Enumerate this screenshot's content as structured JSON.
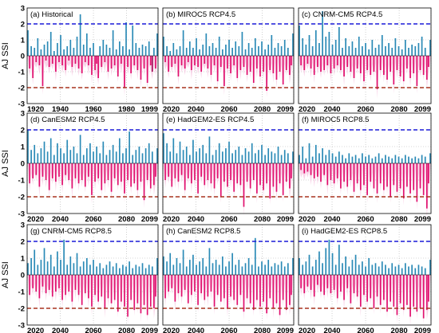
{
  "figure": {
    "colors": {
      "positive": "#2a8ab6",
      "negative": "#e0106e",
      "negative_dark": "#a0105a",
      "envelope": "#f7c6e0",
      "upper_line": "#1a1ad8",
      "lower_line": "#a8321e",
      "grid": "#b0b0b0",
      "frame": "#000000"
    },
    "ylabel": "AJ SSI",
    "ylim": [
      -3,
      3
    ],
    "yticks": [
      "-3",
      "-2",
      "-1",
      "0",
      "1",
      "2",
      "3"
    ],
    "reference_lines": [
      2,
      -2
    ]
  },
  "chart_data": [
    {
      "type": "bar",
      "title": "(a) Historical",
      "x_start": 1920,
      "x_end": 1999,
      "xticks": [
        "1920",
        "1940",
        "1960",
        "1980",
        "1999"
      ],
      "ylim": [
        -3,
        3
      ],
      "values": [
        1.6,
        -0.8,
        0.6,
        -1.4,
        0.5,
        -0.4,
        1.1,
        -0.6,
        0.4,
        -1.9,
        0.7,
        -0.3,
        0.9,
        -0.7,
        1.5,
        -0.5,
        0.3,
        -1.0,
        0.8,
        -0.4,
        1.3,
        -0.6,
        0.4,
        -0.9,
        0.6,
        -0.3,
        1.0,
        -0.7,
        0.5,
        -0.5,
        1.2,
        -0.8,
        2.6,
        -1.1,
        0.7,
        -0.4,
        1.4,
        -0.6,
        0.5,
        -1.2,
        0.8,
        -0.9,
        -0.5,
        -1.4,
        0.6,
        -0.7,
        1.0,
        -0.4,
        0.7,
        -1.0,
        0.5,
        -0.8,
        1.6,
        -0.6,
        0.4,
        -1.3,
        0.9,
        -0.5,
        0.6,
        -2.0,
        2.1,
        -0.7,
        0.4,
        -1.1,
        1.9,
        -0.6,
        0.8,
        -0.9,
        0.5,
        -1.5,
        0.7,
        -0.8,
        0.6,
        -1.7,
        0.9,
        -0.6,
        -1.0,
        0.5,
        -0.8,
        1.4
      ]
    },
    {
      "type": "bar",
      "title": "(b) MIROC5 RCP4.5",
      "x_start": 2020,
      "x_end": 2099,
      "xticks": [
        "2020",
        "2040",
        "2060",
        "2080",
        "2099"
      ],
      "ylim": [
        -3,
        3
      ],
      "values": [
        1.2,
        -0.4,
        0.6,
        -1.0,
        0.3,
        -0.7,
        0.8,
        -0.5,
        0.4,
        -1.3,
        0.6,
        -0.6,
        1.6,
        -0.8,
        0.5,
        -0.4,
        0.9,
        -0.9,
        0.5,
        -0.6,
        1.1,
        -0.7,
        0.4,
        -1.0,
        0.7,
        -0.5,
        1.4,
        -0.8,
        0.6,
        -1.2,
        0.8,
        -0.6,
        0.5,
        -1.6,
        1.2,
        -0.7,
        0.4,
        -1.9,
        0.7,
        -0.8,
        1.0,
        -1.1,
        0.5,
        -0.6,
        0.9,
        -1.4,
        0.6,
        -0.9,
        1.5,
        -0.7,
        0.4,
        -1.2,
        0.8,
        -1.0,
        0.5,
        -1.7,
        1.1,
        -0.8,
        0.6,
        -1.3,
        0.9,
        -1.0,
        0.4,
        -2.2,
        0.7,
        -0.9,
        1.3,
        -1.1,
        0.5,
        -1.5,
        0.8,
        -1.0,
        0.6,
        -1.8,
        1.0,
        -0.9,
        0.5,
        -1.2,
        -0.6,
        1.4
      ]
    },
    {
      "type": "bar",
      "title": "(c) CNRM-CM5 RCP4.5",
      "x_start": 2020,
      "x_end": 2099,
      "xticks": [
        "2020",
        "2040",
        "2060",
        "2080",
        "2099"
      ],
      "ylim": [
        -3,
        3
      ],
      "values": [
        1.9,
        -0.6,
        1.1,
        -0.9,
        0.7,
        -0.5,
        1.3,
        -0.8,
        0.6,
        -1.2,
        1.6,
        -0.7,
        0.8,
        -1.0,
        2.8,
        -0.9,
        1.2,
        -0.6,
        1.5,
        -1.1,
        0.7,
        -0.8,
        1.0,
        -0.6,
        1.8,
        -0.9,
        0.5,
        -1.3,
        1.1,
        -0.7,
        0.6,
        -1.0,
        0.9,
        -1.4,
        0.5,
        -0.8,
        1.2,
        -1.1,
        0.6,
        -1.6,
        0.8,
        -0.9,
        0.4,
        -1.2,
        1.0,
        -1.0,
        0.5,
        -2.1,
        0.7,
        -0.9,
        1.3,
        -1.2,
        0.6,
        -1.5,
        0.8,
        -1.0,
        0.5,
        -1.8,
        1.1,
        -0.9,
        0.6,
        -1.3,
        0.4,
        -1.6,
        1.0,
        -0.8,
        0.5,
        -1.4,
        0.7,
        -1.1,
        0.6,
        -1.9,
        0.8,
        -0.9,
        1.2,
        -1.2,
        0.5,
        -1.5,
        -0.7,
        1.0
      ]
    },
    {
      "type": "bar",
      "title": "(d) CanESM2 RCP4.5",
      "x_start": 2020,
      "x_end": 2099,
      "xticks": [
        "2020",
        "2040",
        "2060",
        "2080",
        "2099"
      ],
      "ylim": [
        -3,
        3
      ],
      "values": [
        2.0,
        -1.2,
        0.8,
        -0.9,
        1.1,
        -0.7,
        0.6,
        -1.4,
        0.9,
        -0.8,
        1.3,
        -1.0,
        0.7,
        -1.6,
        1.5,
        -0.9,
        0.5,
        -1.1,
        1.2,
        -0.8,
        0.9,
        -1.3,
        0.6,
        -0.7,
        1.4,
        -1.0,
        0.8,
        -1.5,
        1.0,
        -0.9,
        0.6,
        -1.2,
        1.7,
        -1.0,
        0.5,
        -1.4,
        0.9,
        -0.8,
        1.2,
        -1.9,
        0.7,
        -1.1,
        1.0,
        -0.9,
        0.6,
        -1.6,
        1.3,
        -1.2,
        0.5,
        -1.0,
        0.8,
        -1.7,
        1.1,
        -0.9,
        0.7,
        -1.3,
        1.5,
        -1.1,
        0.6,
        -1.8,
        0.9,
        -1.0,
        1.9,
        -1.4,
        0.5,
        -1.2,
        0.8,
        -1.6,
        1.0,
        -1.1,
        0.6,
        -2.2,
        0.9,
        -1.0,
        1.2,
        -1.5,
        0.7,
        -1.3,
        -0.8,
        0.9
      ]
    },
    {
      "type": "bar",
      "title": "(e) HadGEM2-ES RCP4.5",
      "x_start": 2020,
      "x_end": 2099,
      "xticks": [
        "2020",
        "2040",
        "2060",
        "2080",
        "2099"
      ],
      "ylim": [
        -3,
        3
      ],
      "values": [
        1.8,
        -1.0,
        1.2,
        -0.8,
        0.7,
        -1.4,
        1.5,
        -0.9,
        0.6,
        -1.1,
        1.3,
        -0.7,
        0.8,
        -1.6,
        1.0,
        -0.9,
        0.5,
        -1.2,
        1.4,
        -1.0,
        0.7,
        -1.8,
        0.9,
        -0.8,
        1.1,
        -1.3,
        0.6,
        -1.0,
        1.6,
        -1.2,
        0.5,
        -1.5,
        0.8,
        -0.9,
        1.2,
        -2.0,
        0.7,
        -1.1,
        0.9,
        -1.4,
        1.3,
        -1.0,
        0.6,
        -1.7,
        0.8,
        -1.2,
        1.0,
        -1.3,
        0.5,
        -2.6,
        0.9,
        -1.1,
        0.7,
        -1.5,
        1.2,
        -1.0,
        0.6,
        -1.8,
        0.8,
        -1.3,
        1.1,
        -1.6,
        0.5,
        -1.2,
        0.9,
        -2.1,
        0.7,
        -1.4,
        0.6,
        -1.7,
        1.0,
        -1.2,
        0.5,
        -1.9,
        0.8,
        -1.1,
        0.6,
        -1.5,
        -0.9,
        0.7
      ]
    },
    {
      "type": "bar",
      "title": "(f) MIROC5 RCP8.5",
      "x_start": 2020,
      "x_end": 2099,
      "xticks": [
        "2020",
        "2040",
        "2060",
        "2080",
        "2099"
      ],
      "ylim": [
        -3,
        3
      ],
      "values": [
        0.5,
        -0.4,
        1.0,
        -0.6,
        0.3,
        -0.5,
        1.2,
        -0.7,
        0.4,
        -0.9,
        1.1,
        -0.8,
        0.6,
        -1.1,
        0.9,
        -0.7,
        0.5,
        -1.3,
        0.8,
        -1.0,
        0.6,
        -1.2,
        0.4,
        -0.9,
        0.7,
        -1.5,
        0.5,
        -1.1,
        0.3,
        -1.4,
        0.6,
        -1.0,
        0.4,
        -1.7,
        0.5,
        -1.2,
        0.3,
        -1.6,
        0.6,
        -1.3,
        0.4,
        -1.9,
        0.5,
        -1.1,
        0.3,
        -1.5,
        0.4,
        -1.8,
        0.6,
        -1.2,
        0.3,
        -1.6,
        0.5,
        -1.4,
        0.4,
        -2.0,
        0.3,
        -1.3,
        0.5,
        -1.7,
        0.4,
        -1.5,
        0.3,
        -2.1,
        0.5,
        -1.4,
        0.4,
        -1.8,
        0.3,
        -1.6,
        0.4,
        -2.3,
        0.3,
        -1.5,
        0.5,
        -1.9,
        0.4,
        -2.7,
        -1.2,
        0.6
      ]
    },
    {
      "type": "bar",
      "title": "(g) CNRM-CM5 RCP8.5",
      "x_start": 2020,
      "x_end": 2099,
      "xticks": [
        "2020",
        "2040",
        "2060",
        "2080",
        "2099"
      ],
      "ylim": [
        -3,
        3
      ],
      "values": [
        0.7,
        -1.2,
        1.0,
        -0.8,
        1.5,
        -1.0,
        0.6,
        -1.4,
        0.9,
        -0.7,
        1.6,
        -1.1,
        0.8,
        -0.9,
        1.2,
        -1.3,
        0.5,
        -1.0,
        1.4,
        -0.8,
        0.9,
        -1.5,
        2.1,
        -1.2,
        0.6,
        -1.0,
        1.1,
        -1.6,
        0.7,
        -0.9,
        1.3,
        -1.2,
        0.5,
        -1.8,
        0.8,
        -1.1,
        1.0,
        -1.4,
        0.6,
        -1.9,
        0.9,
        -1.2,
        0.5,
        -1.6,
        0.7,
        -1.3,
        0.4,
        -2.0,
        0.6,
        -1.4,
        0.8,
        -1.7,
        0.5,
        -1.5,
        0.7,
        -2.2,
        0.4,
        -1.6,
        0.6,
        -1.9,
        0.5,
        -2.5,
        0.8,
        -1.5,
        0.4,
        -2.1,
        0.6,
        -1.7,
        0.5,
        -2.3,
        0.7,
        -1.8,
        0.4,
        -2.4,
        0.6,
        -1.9,
        0.5,
        -2.0,
        -1.3,
        1.0
      ]
    },
    {
      "type": "bar",
      "title": "(h) CanESM2 RCP8.5",
      "x_start": 2020,
      "x_end": 2099,
      "xticks": [
        "2020",
        "2040",
        "2060",
        "2080",
        "2099"
      ],
      "ylim": [
        -3,
        3
      ],
      "values": [
        1.1,
        -1.4,
        0.8,
        -1.0,
        1.3,
        -0.8,
        0.6,
        -1.6,
        1.0,
        -1.1,
        0.7,
        -1.3,
        1.5,
        -0.9,
        0.5,
        -1.7,
        0.9,
        -1.2,
        1.2,
        -1.0,
        0.6,
        -1.8,
        0.8,
        -1.1,
        1.0,
        -1.5,
        0.5,
        -1.3,
        1.6,
        -1.0,
        0.7,
        -1.9,
        0.9,
        -1.2,
        0.6,
        -1.6,
        1.1,
        -1.4,
        0.5,
        -2.0,
        0.8,
        -1.3,
        1.3,
        -1.5,
        0.6,
        -1.8,
        0.9,
        -1.2,
        0.5,
        -2.2,
        0.7,
        -1.4,
        1.0,
        -1.7,
        0.6,
        -2.1,
        2.2,
        -1.5,
        0.5,
        -1.9,
        0.8,
        -1.6,
        0.6,
        -2.3,
        0.9,
        -1.4,
        0.5,
        -2.0,
        0.7,
        -1.7,
        0.6,
        -2.4,
        0.8,
        -1.5,
        0.5,
        -2.1,
        0.7,
        -1.8,
        -1.2,
        1.0
      ]
    },
    {
      "type": "bar",
      "title": "(i) HadGEM2-ES RCP8.5",
      "x_start": 2020,
      "x_end": 2099,
      "xticks": [
        "2020",
        "2040",
        "2060",
        "2080",
        "2099"
      ],
      "ylim": [
        -3,
        3
      ],
      "values": [
        1.0,
        -0.8,
        0.6,
        -1.1,
        0.8,
        -0.7,
        1.2,
        -0.9,
        0.5,
        -1.3,
        0.9,
        -0.6,
        1.4,
        -1.0,
        0.7,
        -1.2,
        1.6,
        -0.8,
        2.1,
        -1.1,
        1.3,
        -0.9,
        0.6,
        -1.4,
        1.8,
        -1.0,
        0.7,
        -1.5,
        1.1,
        -0.8,
        0.5,
        -1.7,
        0.9,
        -1.1,
        1.2,
        -1.3,
        0.6,
        -1.9,
        0.8,
        -1.2,
        0.5,
        -1.6,
        1.0,
        -1.4,
        0.6,
        -2.0,
        0.7,
        -1.3,
        0.5,
        -1.8,
        0.8,
        -1.5,
        0.6,
        -2.2,
        0.4,
        -1.6,
        0.7,
        -1.9,
        0.5,
        -2.4,
        0.6,
        -1.7,
        0.4,
        -2.1,
        0.7,
        -1.8,
        0.5,
        -2.5,
        0.6,
        -1.9,
        0.4,
        -2.2,
        0.6,
        -2.0,
        0.5,
        -2.6,
        0.4,
        -2.1,
        -1.6,
        0.9
      ]
    }
  ]
}
